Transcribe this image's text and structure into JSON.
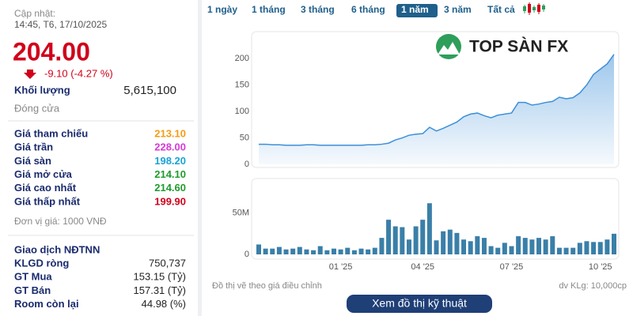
{
  "left_panel": {
    "updated_label": "Cập nhật:",
    "updated_time": "14:45, T6, 17/10/2025",
    "price": "204.00",
    "change": "-9.10 (-4.27 %)",
    "volume_label": "Khối lượng",
    "volume": "5,615,100",
    "status": "Đóng cửa",
    "price_rows": [
      {
        "label": "Giá tham chiếu",
        "value": "213.10",
        "color": "#f39c12"
      },
      {
        "label": "Giá trần",
        "value": "228.00",
        "color": "#d63ad6"
      },
      {
        "label": "Giá sàn",
        "value": "198.20",
        "color": "#1aa3d6"
      },
      {
        "label": "Giá mở cửa",
        "value": "214.10",
        "color": "#1e9b2e"
      },
      {
        "label": "Giá cao nhất",
        "value": "214.60",
        "color": "#1e9b2e"
      },
      {
        "label": "Giá thấp nhất",
        "value": "199.90",
        "color": "#d0021b"
      }
    ],
    "unit_note": "Đơn vị giá: 1000 VNĐ",
    "foreign_title": "Giao dịch NĐTNN",
    "foreign_rows": [
      {
        "label": "KLGD ròng",
        "value": "750,737"
      },
      {
        "label": "GT Mua",
        "value": "153.15 (Tỷ)"
      },
      {
        "label": "GT Bán",
        "value": "157.31 (Tỷ)"
      },
      {
        "label": "Room còn lại",
        "value": "44.98 (%)"
      }
    ]
  },
  "tabs": {
    "items": [
      "1 ngày",
      "1 tháng",
      "3 tháng",
      "6 tháng",
      "1 năm",
      "3 năm",
      "Tất cả"
    ],
    "selected": 4
  },
  "logo": "TOP SÀN FX",
  "chart_data": [
    {
      "type": "area",
      "color": "#3d8fd8",
      "ylim": [
        0,
        248
      ],
      "yticks": [
        0,
        50,
        100,
        150,
        200
      ],
      "grid": false,
      "values": [
        38,
        38,
        37,
        37,
        36,
        36,
        36,
        37,
        37,
        36,
        36,
        36,
        36,
        36,
        36,
        36,
        37,
        37,
        38,
        40,
        46,
        50,
        55,
        57,
        58,
        70,
        63,
        68,
        74,
        80,
        90,
        95,
        97,
        92,
        88,
        93,
        95,
        97,
        117,
        117,
        112,
        114,
        117,
        119,
        127,
        124,
        126,
        135,
        150,
        170,
        180,
        190,
        208
      ]
    },
    {
      "type": "bar",
      "color": "#3a7fa8",
      "ylim": [
        0,
        90000000
      ],
      "yticks": [
        0,
        {
          "value": 50000000,
          "label": "50M"
        }
      ],
      "grid": false,
      "categories": [
        null,
        null,
        null,
        null,
        null,
        null,
        null,
        null,
        null,
        null,
        null,
        null,
        "01 '25",
        null,
        null,
        null,
        null,
        null,
        null,
        null,
        null,
        null,
        null,
        null,
        "04 '25",
        null,
        null,
        null,
        null,
        null,
        null,
        null,
        null,
        null,
        null,
        null,
        null,
        "07 '25",
        null,
        null,
        null,
        null,
        null,
        null,
        null,
        null,
        null,
        null,
        null,
        null,
        "10 '25",
        null,
        null
      ],
      "values": [
        12000000,
        7000000,
        7000000,
        9000000,
        6000000,
        7000000,
        9000000,
        6000000,
        5000000,
        10000000,
        5000000,
        7000000,
        6000000,
        8000000,
        5000000,
        7000000,
        6000000,
        8000000,
        20000000,
        42000000,
        34000000,
        33000000,
        18000000,
        34000000,
        42000000,
        62000000,
        17000000,
        28000000,
        30000000,
        26000000,
        18000000,
        16000000,
        22000000,
        20000000,
        10000000,
        8000000,
        14000000,
        10000000,
        22000000,
        20000000,
        18000000,
        20000000,
        18000000,
        22000000,
        8000000,
        8000000,
        8000000,
        14000000,
        16000000,
        15000000,
        15000000,
        18000000,
        25000000
      ]
    }
  ],
  "footer": {
    "note": "Đồ thị vẽ theo giá điều chỉnh",
    "unit": "dv KLg: 10,000cp",
    "button": "Xem đồ thị kỹ thuật"
  }
}
